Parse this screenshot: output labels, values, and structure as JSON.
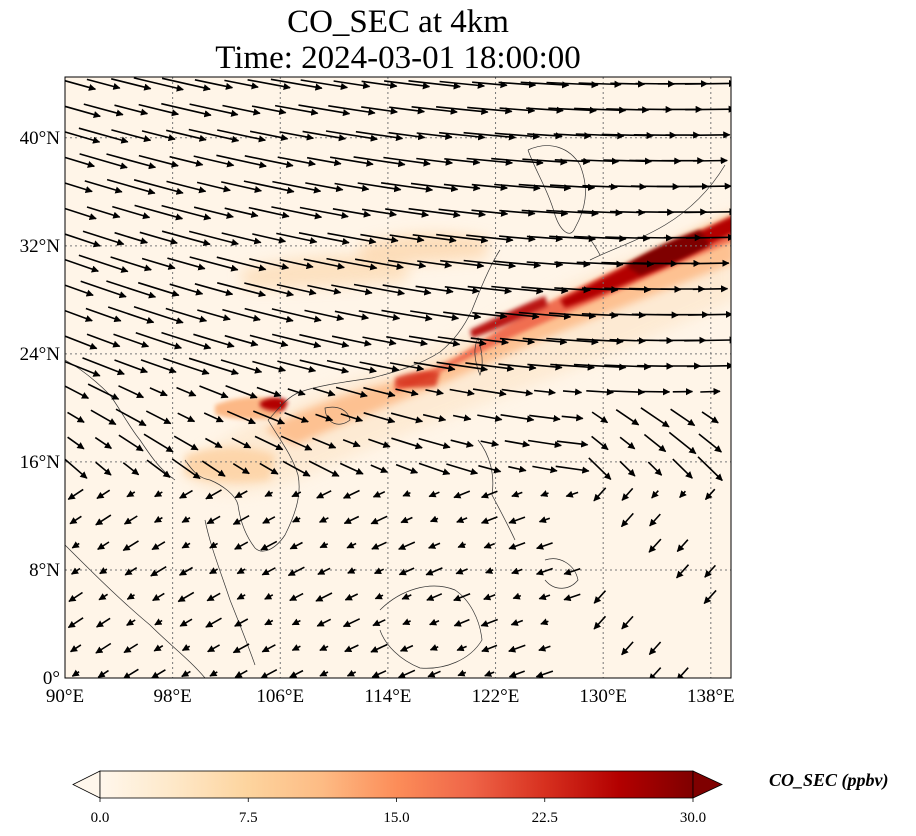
{
  "title": {
    "line1": "CO_SEC at 4km",
    "line2": "Time: 2024-03-01 18:00:00"
  },
  "map": {
    "lon_range": [
      90,
      139.5
    ],
    "lat_range": [
      0,
      44.5
    ],
    "lon_ticks": [
      {
        "value": 90,
        "label": "90°E"
      },
      {
        "value": 98,
        "label": "98°E"
      },
      {
        "value": 106,
        "label": "106°E"
      },
      {
        "value": 114,
        "label": "114°E"
      },
      {
        "value": 122,
        "label": "122°E"
      },
      {
        "value": 130,
        "label": "130°E"
      },
      {
        "value": 138,
        "label": "138°E"
      }
    ],
    "lat_ticks": [
      {
        "value": 0,
        "label": "0°"
      },
      {
        "value": 8,
        "label": "8°N"
      },
      {
        "value": 16,
        "label": "16°N"
      },
      {
        "value": 24,
        "label": "24°N"
      },
      {
        "value": 32,
        "label": "32°N"
      },
      {
        "value": 40,
        "label": "40°N"
      }
    ],
    "gridlines": true,
    "plume_color_high": "#8b0000",
    "background_color": "#fff5e8"
  },
  "colorbar": {
    "label": "CO_SEC (ppbv)",
    "min": 0.0,
    "max": 30.0,
    "tick_labels": [
      "0.0",
      "7.5",
      "15.0",
      "22.5",
      "30.0"
    ],
    "tick_values": [
      0.0,
      7.5,
      15.0,
      22.5,
      30.0
    ],
    "colormap": "OrRd",
    "colors": [
      "#fff7ec",
      "#fee8c8",
      "#fdd49e",
      "#fdbb84",
      "#fc8d59",
      "#ef6548",
      "#d7301f",
      "#b30000",
      "#7f0000"
    ],
    "extend": "both"
  }
}
